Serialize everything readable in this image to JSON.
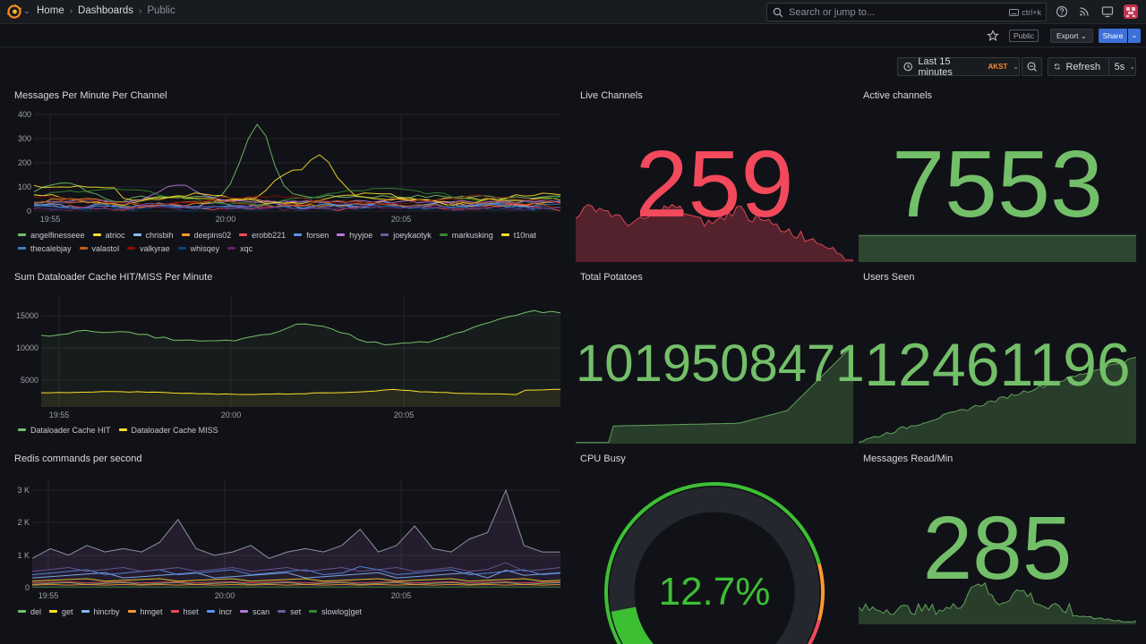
{
  "topbar": {
    "breadcrumbs": [
      "Home",
      "Dashboards",
      "Public"
    ],
    "search_placeholder": "Search or jump to...",
    "search_shortcut": "ctrl+k",
    "icons": [
      "help-icon",
      "rss-icon",
      "monitor-icon",
      "avatar"
    ]
  },
  "subbar": {
    "public_label": "Public",
    "export_label": "Export",
    "share_label": "Share"
  },
  "timecontrols": {
    "range_label": "Last 15 minutes",
    "timezone": "AKST",
    "refresh_label": "Refresh",
    "interval": "5s"
  },
  "panels": {
    "messages": {
      "title": "Messages Per Minute Per Channel",
      "y_ticks": [
        "400",
        "300",
        "200",
        "100",
        "0"
      ],
      "x_ticks": [
        "19:55",
        "20:00",
        "20:05"
      ],
      "legend": [
        {
          "name": "angelfinesseee",
          "color": "#73bf69"
        },
        {
          "name": "atrioc",
          "color": "#fade2a"
        },
        {
          "name": "chrisbih",
          "color": "#8ab8ff"
        },
        {
          "name": "deepins02",
          "color": "#ff9830"
        },
        {
          "name": "erobb221",
          "color": "#f2495c"
        },
        {
          "name": "forsen",
          "color": "#5794f2"
        },
        {
          "name": "hyyjoe",
          "color": "#b877d9"
        },
        {
          "name": "joeykaotyk",
          "color": "#705da0"
        },
        {
          "name": "markusking",
          "color": "#37872d"
        },
        {
          "name": "t10nat",
          "color": "#fade2a"
        },
        {
          "name": "thecalebjay",
          "color": "#447ebc"
        },
        {
          "name": "valastol",
          "color": "#c15c17"
        },
        {
          "name": "valkyrae",
          "color": "#890f02"
        },
        {
          "name": "whisqey",
          "color": "#0a437c"
        },
        {
          "name": "xqc",
          "color": "#6d1f62"
        }
      ]
    },
    "live": {
      "title": "Live Channels",
      "value": "259",
      "color": "#f2495c"
    },
    "active": {
      "title": "Active channels",
      "value": "7553",
      "color": "#73bf69"
    },
    "cache": {
      "title": "Sum Dataloader Cache HIT/MISS Per Minute",
      "y_ticks": [
        "15000",
        "10000",
        "5000"
      ],
      "x_ticks": [
        "19:55",
        "20:00",
        "20:05"
      ],
      "legend": [
        {
          "name": "Dataloader Cache HIT",
          "color": "#73bf69"
        },
        {
          "name": "Dataloader Cache MISS",
          "color": "#fade2a"
        }
      ]
    },
    "potatoes": {
      "title": "Total Potatoes",
      "value": "1019508471",
      "color": "#73bf69"
    },
    "users": {
      "title": "Users Seen",
      "value": "12461196",
      "color": "#73bf69"
    },
    "redis": {
      "title": "Redis commands per second",
      "y_ticks": [
        "3 K",
        "2 K",
        "1 K",
        "0"
      ],
      "x_ticks": [
        "19:55",
        "20:00",
        "20:05"
      ],
      "legend": [
        {
          "name": "del",
          "color": "#73bf69"
        },
        {
          "name": "get",
          "color": "#fade2a"
        },
        {
          "name": "hincrby",
          "color": "#8ab8ff"
        },
        {
          "name": "hmget",
          "color": "#ff9830"
        },
        {
          "name": "hset",
          "color": "#f2495c"
        },
        {
          "name": "incr",
          "color": "#5794f2"
        },
        {
          "name": "scan",
          "color": "#b877d9"
        },
        {
          "name": "set",
          "color": "#705da0"
        },
        {
          "name": "slowlog|get",
          "color": "#37872d"
        }
      ]
    },
    "cpu": {
      "title": "CPU Busy",
      "value": "12.7%",
      "percent": 12.7,
      "color": "#3dbf34"
    },
    "read": {
      "title": "Messages Read/Min",
      "value": "285",
      "color": "#73bf69"
    }
  }
}
